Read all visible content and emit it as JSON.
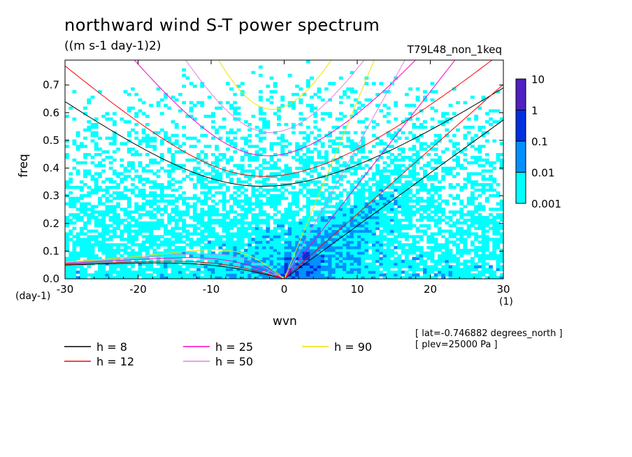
{
  "chart_data": {
    "type": "heatmap",
    "title": "northward wind S-T power spectrum",
    "subtitle": "((m s-1 day-1)2)",
    "experiment": "T79L48_non_1keq",
    "xlabel": "wvn",
    "ylabel": "freq",
    "x_unit": "(1)",
    "y_unit": "(day-1)",
    "xlim": [
      -30,
      30
    ],
    "ylim": [
      0,
      0.79
    ],
    "x_ticks": [
      -30,
      -20,
      -10,
      0,
      10,
      20,
      30
    ],
    "y_ticks": [
      0.0,
      0.1,
      0.2,
      0.3,
      0.4,
      0.5,
      0.6,
      0.7
    ],
    "x_tick_labels": [
      "-30",
      "-20",
      "-10",
      "0",
      "10",
      "20",
      "30"
    ],
    "y_tick_labels": [
      "0.0",
      "0.1",
      "0.2",
      "0.3",
      "0.4",
      "0.5",
      "0.6",
      "0.7"
    ],
    "colorbar": {
      "levels": [
        0.001,
        0.01,
        0.1,
        1,
        10
      ],
      "labels": [
        "0.001",
        "0.01",
        "0.1",
        "1",
        "10"
      ],
      "colors": [
        "#00ffff",
        "#0090ff",
        "#0030e0",
        "#0000b0",
        "#5020c0"
      ]
    },
    "dispersion_curves": [
      {
        "name": "h = 8",
        "h": 8,
        "color": "#000000"
      },
      {
        "name": "h = 12",
        "h": 12,
        "color": "#ff0000"
      },
      {
        "name": "h = 25",
        "h": 25,
        "color": "#ff00c0"
      },
      {
        "name": "h = 50",
        "h": 50,
        "color": "#e080e0"
      },
      {
        "name": "h = 90",
        "h": 90,
        "color": "#f0e000"
      }
    ],
    "annotations": [
      "[ lat=-0.746882 degrees_north ]",
      "[ plev=25000 Pa ]"
    ]
  }
}
